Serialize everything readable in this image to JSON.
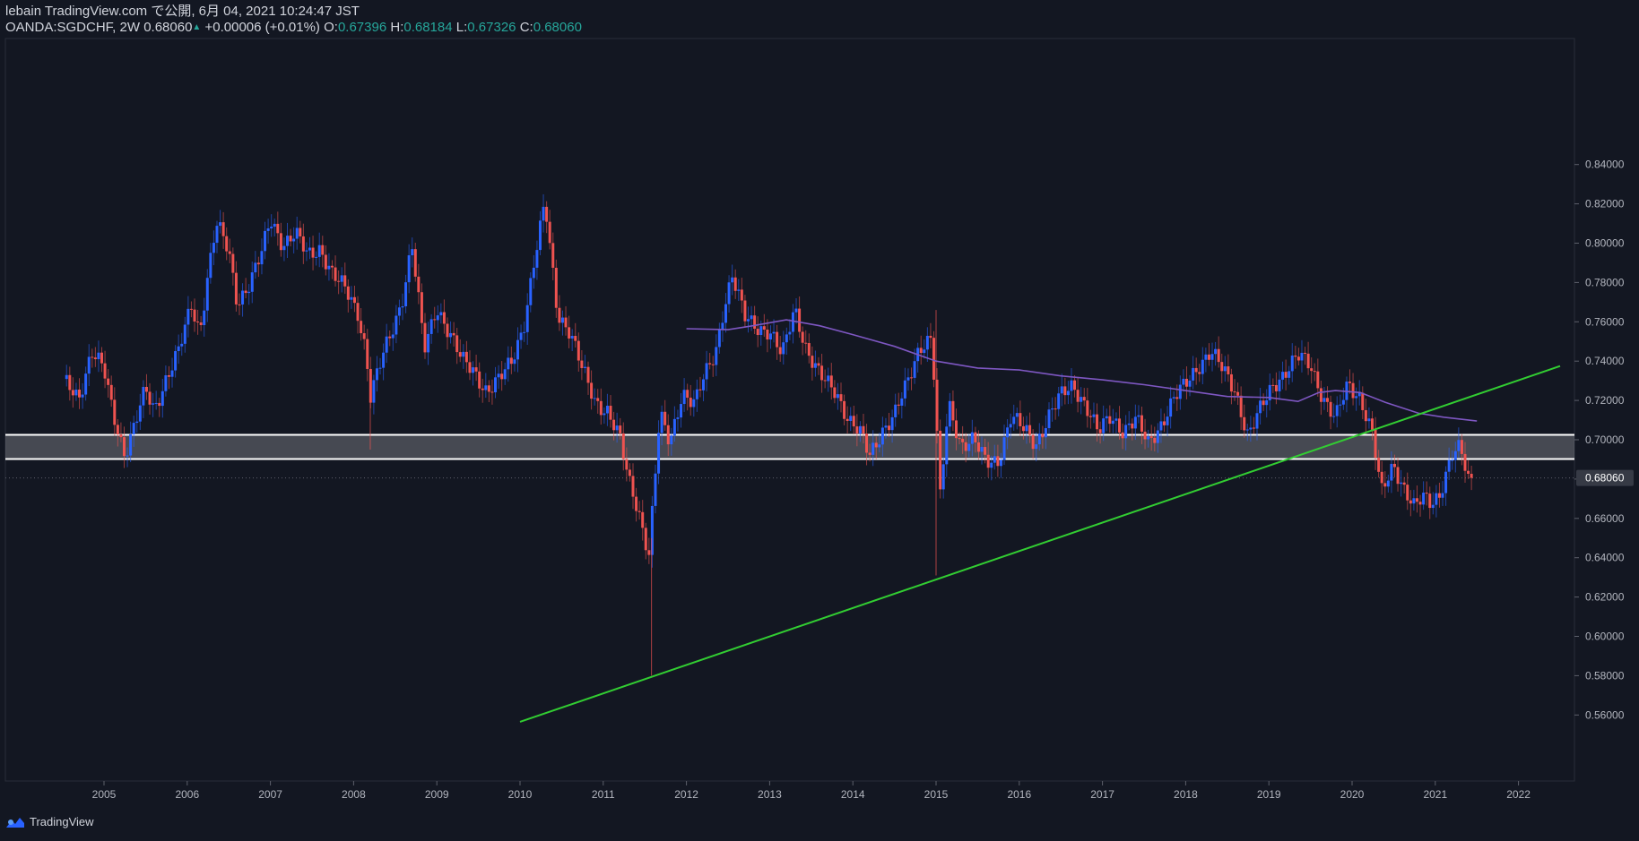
{
  "header": {
    "publish_line": "lebain TradingView.com で公開, 6月 04, 2021 10:24:47 JST",
    "symbol": "OANDA:SGDCHF, 2W",
    "last": "0.68060",
    "change": "+0.00006 (+0.01%)",
    "o_label": "O:",
    "o_value": "0.67396",
    "h_label": "H:",
    "h_value": "0.68184",
    "l_label": "L:",
    "l_value": "0.67326",
    "c_label": "C:",
    "c_value": "0.68060"
  },
  "footer": {
    "brand": "TradingView"
  },
  "colors": {
    "background": "#131722",
    "up": "#2962ff",
    "down": "#ef5350",
    "ma": "#7e57c2",
    "trendline": "#32cd32",
    "zone": "#ffffff",
    "last_price_label": "#363a45",
    "text": "#d1d4dc"
  },
  "chart_data": {
    "type": "candlestick",
    "symbol": "OANDA:SGDCHF",
    "interval": "2W",
    "last_price": 0.6806,
    "x_ticks": [
      "2005",
      "2006",
      "2007",
      "2008",
      "2009",
      "2010",
      "2011",
      "2012",
      "2013",
      "2014",
      "2015",
      "2016",
      "2017",
      "2018",
      "2019",
      "2020",
      "2021",
      "2022"
    ],
    "y_ticks": [
      "0.84000",
      "0.82000",
      "0.80000",
      "0.78000",
      "0.76000",
      "0.74000",
      "0.72000",
      "0.70000",
      "0.68000",
      "0.66000",
      "0.64000",
      "0.62000",
      "0.60000",
      "0.58000",
      "0.56000"
    ],
    "x_range": [
      2004.0,
      2022.5
    ],
    "y_range": [
      0.5535,
      0.8575
    ],
    "close_path": [
      [
        2004.55,
        0.728
      ],
      [
        2004.7,
        0.722
      ],
      [
        2004.85,
        0.745
      ],
      [
        2005.0,
        0.735
      ],
      [
        2005.1,
        0.715
      ],
      [
        2005.25,
        0.693
      ],
      [
        2005.35,
        0.705
      ],
      [
        2005.5,
        0.725
      ],
      [
        2005.6,
        0.715
      ],
      [
        2005.75,
        0.732
      ],
      [
        2005.9,
        0.745
      ],
      [
        2006.05,
        0.768
      ],
      [
        2006.15,
        0.755
      ],
      [
        2006.25,
        0.785
      ],
      [
        2006.35,
        0.81
      ],
      [
        2006.5,
        0.795
      ],
      [
        2006.6,
        0.77
      ],
      [
        2006.75,
        0.78
      ],
      [
        2006.9,
        0.795
      ],
      [
        2007.0,
        0.812
      ],
      [
        2007.15,
        0.8
      ],
      [
        2007.3,
        0.805
      ],
      [
        2007.45,
        0.793
      ],
      [
        2007.6,
        0.798
      ],
      [
        2007.75,
        0.784
      ],
      [
        2007.9,
        0.776
      ],
      [
        2008.05,
        0.765
      ],
      [
        2008.15,
        0.745
      ],
      [
        2008.2,
        0.722
      ],
      [
        2008.35,
        0.742
      ],
      [
        2008.5,
        0.76
      ],
      [
        2008.6,
        0.775
      ],
      [
        2008.7,
        0.8
      ],
      [
        2008.85,
        0.745
      ],
      [
        2009.0,
        0.768
      ],
      [
        2009.15,
        0.755
      ],
      [
        2009.3,
        0.74
      ],
      [
        2009.45,
        0.735
      ],
      [
        2009.6,
        0.725
      ],
      [
        2009.75,
        0.73
      ],
      [
        2009.9,
        0.74
      ],
      [
        2010.05,
        0.76
      ],
      [
        2010.15,
        0.785
      ],
      [
        2010.3,
        0.82
      ],
      [
        2010.45,
        0.765
      ],
      [
        2010.6,
        0.755
      ],
      [
        2010.75,
        0.735
      ],
      [
        2010.9,
        0.72
      ],
      [
        2011.05,
        0.715
      ],
      [
        2011.2,
        0.7
      ],
      [
        2011.3,
        0.68
      ],
      [
        2011.42,
        0.665
      ],
      [
        2011.55,
        0.642
      ],
      [
        2011.68,
        0.712
      ],
      [
        2011.8,
        0.698
      ],
      [
        2011.95,
        0.725
      ],
      [
        2012.1,
        0.718
      ],
      [
        2012.2,
        0.73
      ],
      [
        2012.35,
        0.745
      ],
      [
        2012.45,
        0.768
      ],
      [
        2012.55,
        0.783
      ],
      [
        2012.7,
        0.762
      ],
      [
        2012.85,
        0.758
      ],
      [
        2013.0,
        0.755
      ],
      [
        2013.15,
        0.742
      ],
      [
        2013.3,
        0.768
      ],
      [
        2013.45,
        0.745
      ],
      [
        2013.6,
        0.732
      ],
      [
        2013.8,
        0.725
      ],
      [
        2013.95,
        0.71
      ],
      [
        2014.1,
        0.702
      ],
      [
        2014.2,
        0.692
      ],
      [
        2014.35,
        0.705
      ],
      [
        2014.5,
        0.712
      ],
      [
        2014.65,
        0.728
      ],
      [
        2014.8,
        0.748
      ],
      [
        2014.95,
        0.752
      ],
      [
        2015.05,
        0.67
      ],
      [
        2015.15,
        0.718
      ],
      [
        2015.3,
        0.698
      ],
      [
        2015.45,
        0.7
      ],
      [
        2015.6,
        0.688
      ],
      [
        2015.75,
        0.69
      ],
      [
        2015.9,
        0.712
      ],
      [
        2016.05,
        0.705
      ],
      [
        2016.2,
        0.698
      ],
      [
        2016.35,
        0.712
      ],
      [
        2016.5,
        0.722
      ],
      [
        2016.65,
        0.728
      ],
      [
        2016.8,
        0.718
      ],
      [
        2016.95,
        0.703
      ],
      [
        2017.1,
        0.712
      ],
      [
        2017.25,
        0.705
      ],
      [
        2017.4,
        0.71
      ],
      [
        2017.55,
        0.698
      ],
      [
        2017.7,
        0.708
      ],
      [
        2017.85,
        0.72
      ],
      [
        2018.0,
        0.728
      ],
      [
        2018.15,
        0.738
      ],
      [
        2018.3,
        0.745
      ],
      [
        2018.45,
        0.735
      ],
      [
        2018.6,
        0.725
      ],
      [
        2018.75,
        0.702
      ],
      [
        2018.9,
        0.715
      ],
      [
        2019.05,
        0.728
      ],
      [
        2019.2,
        0.735
      ],
      [
        2019.35,
        0.742
      ],
      [
        2019.5,
        0.738
      ],
      [
        2019.65,
        0.722
      ],
      [
        2019.8,
        0.71
      ],
      [
        2019.95,
        0.728
      ],
      [
        2020.1,
        0.722
      ],
      [
        2020.25,
        0.702
      ],
      [
        2020.35,
        0.672
      ],
      [
        2020.5,
        0.688
      ],
      [
        2020.6,
        0.678
      ],
      [
        2020.75,
        0.665
      ],
      [
        2020.85,
        0.67
      ],
      [
        2020.95,
        0.668
      ],
      [
        2021.05,
        0.673
      ],
      [
        2021.2,
        0.692
      ],
      [
        2021.3,
        0.695
      ],
      [
        2021.42,
        0.676
      ],
      [
        2021.47,
        0.6806
      ]
    ],
    "moving_average": [
      [
        2012.0,
        0.7565
      ],
      [
        2012.5,
        0.756
      ],
      [
        2012.8,
        0.758
      ],
      [
        2013.2,
        0.761
      ],
      [
        2013.6,
        0.758
      ],
      [
        2014.0,
        0.7535
      ],
      [
        2014.5,
        0.7475
      ],
      [
        2015.0,
        0.74
      ],
      [
        2015.5,
        0.7365
      ],
      [
        2016.0,
        0.7355
      ],
      [
        2016.5,
        0.7325
      ],
      [
        2017.0,
        0.7305
      ],
      [
        2017.5,
        0.728
      ],
      [
        2018.0,
        0.725
      ],
      [
        2018.5,
        0.722
      ],
      [
        2019.0,
        0.7215
      ],
      [
        2019.35,
        0.7195
      ],
      [
        2019.6,
        0.724
      ],
      [
        2019.8,
        0.725
      ],
      [
        2020.1,
        0.724
      ],
      [
        2020.4,
        0.719
      ],
      [
        2020.8,
        0.7135
      ],
      [
        2021.1,
        0.7115
      ],
      [
        2021.5,
        0.7095
      ]
    ],
    "trend_line": {
      "from": [
        2010.0,
        0.5565
      ],
      "to": [
        2022.5,
        0.7375
      ]
    },
    "zone": {
      "upper": 0.7025,
      "lower": 0.6902
    }
  }
}
